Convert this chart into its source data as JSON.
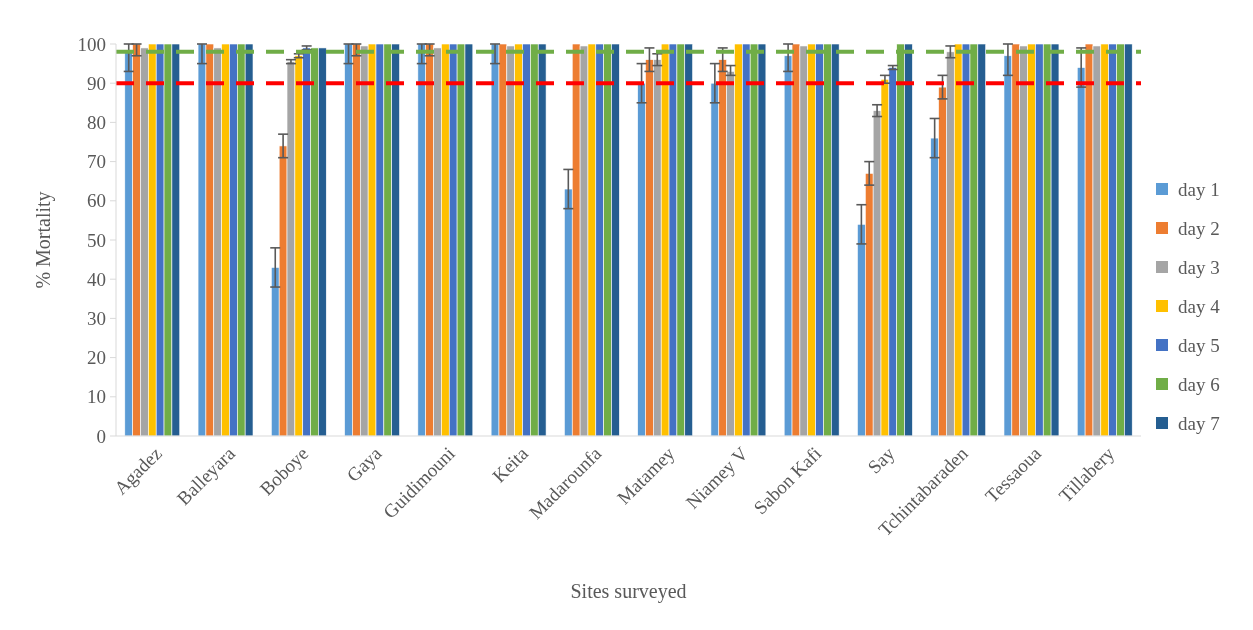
{
  "chart_data": {
    "type": "bar",
    "xlabel": "Sites surveyed",
    "ylabel": "% Mortality",
    "categories": [
      "Agadez",
      "Balleyara",
      "Boboye",
      "Gaya",
      "Guidimouni",
      "Keita",
      "Madarounfa",
      "Matamey",
      "Niamey V",
      "Sabon Kafi",
      "Say",
      "Tchintabaraden",
      "Tessaoua",
      "Tillabery"
    ],
    "series": [
      {
        "name": "day 1",
        "color": "#5b9bd5",
        "values": [
          98,
          100,
          43,
          100,
          100,
          100,
          63,
          90,
          90,
          97,
          54,
          76,
          97,
          94
        ],
        "errors": [
          [
            93,
            100
          ],
          [
            95,
            100
          ],
          [
            38,
            48
          ],
          [
            95,
            100
          ],
          [
            95,
            100
          ],
          [
            95,
            100
          ],
          [
            58,
            68
          ],
          [
            85,
            95
          ],
          [
            85,
            95
          ],
          [
            93,
            100
          ],
          [
            49,
            59
          ],
          [
            71,
            81
          ],
          [
            92,
            100
          ],
          [
            89,
            99
          ]
        ]
      },
      {
        "name": "day 2",
        "color": "#ed7d31",
        "values": [
          100,
          100,
          74,
          100,
          100,
          100,
          100,
          96,
          96,
          100,
          67,
          89,
          100,
          100
        ],
        "errors": [
          [
            97,
            100
          ],
          null,
          [
            71,
            77
          ],
          [
            97,
            100
          ],
          [
            97,
            100
          ],
          null,
          null,
          [
            93,
            99
          ],
          [
            93,
            99
          ],
          null,
          [
            64,
            70
          ],
          [
            86,
            92
          ],
          null,
          null
        ]
      },
      {
        "name": "day 3",
        "color": "#a5a5a5",
        "values": [
          99,
          99,
          95.5,
          99.5,
          99,
          99.5,
          99.5,
          96,
          93,
          99.5,
          83,
          98,
          99.5,
          99.5
        ],
        "errors": [
          null,
          null,
          [
            95,
            96
          ],
          null,
          null,
          null,
          null,
          [
            94.5,
            97.5
          ],
          [
            92,
            94.5
          ],
          null,
          [
            81.5,
            84.5
          ],
          [
            96.5,
            99.5
          ],
          null,
          null
        ]
      },
      {
        "name": "day 4",
        "color": "#ffc000",
        "values": [
          100,
          100,
          97,
          100,
          100,
          100,
          100,
          100,
          100,
          100,
          91,
          100,
          100,
          100
        ],
        "errors": [
          null,
          null,
          [
            96.5,
            97.5
          ],
          null,
          null,
          null,
          null,
          null,
          null,
          null,
          [
            90,
            92
          ],
          null,
          null,
          null
        ]
      },
      {
        "name": "day 5",
        "color": "#4472c4",
        "values": [
          100,
          100,
          99,
          100,
          100,
          100,
          100,
          100,
          100,
          100,
          94,
          100,
          100,
          100
        ],
        "errors": [
          null,
          null,
          [
            98.5,
            99.5
          ],
          null,
          null,
          null,
          null,
          null,
          null,
          null,
          [
            93.5,
            94.5
          ],
          null,
          null,
          null
        ]
      },
      {
        "name": "day 6",
        "color": "#70ad47",
        "values": [
          100,
          100,
          99,
          100,
          100,
          100,
          100,
          100,
          100,
          100,
          100,
          100,
          100,
          100
        ]
      },
      {
        "name": "day 7",
        "color": "#255e91",
        "values": [
          100,
          100,
          99,
          100,
          100,
          100,
          100,
          100,
          100,
          100,
          100,
          100,
          100,
          100
        ]
      }
    ],
    "ylim": [
      0,
      100
    ],
    "yticks": [
      0,
      10,
      20,
      30,
      40,
      50,
      60,
      70,
      80,
      90,
      100
    ],
    "ref_lines": [
      {
        "axis": "y",
        "value": 90,
        "color": "#ff0000",
        "line_style": "dashed"
      },
      {
        "axis": "y",
        "value": 98,
        "color": "#70ad47",
        "line_style": "dashed"
      }
    ],
    "legend": "right",
    "grid": false
  }
}
